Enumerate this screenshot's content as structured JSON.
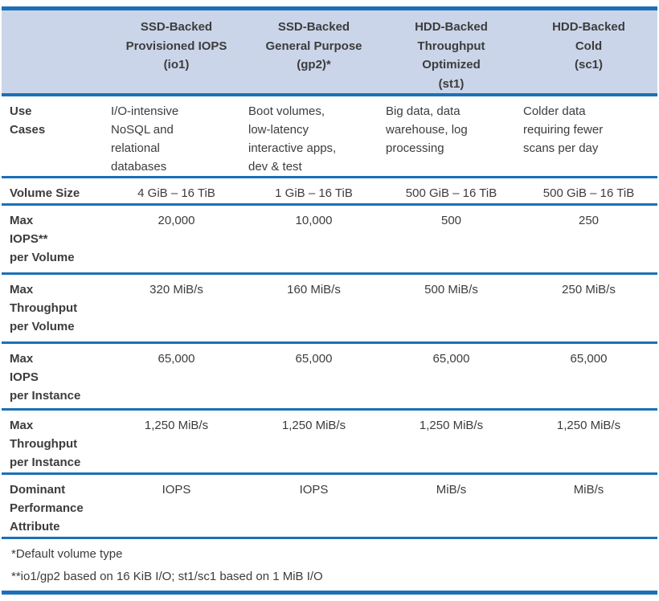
{
  "table": {
    "columns": [
      "",
      "SSD-Backed\nProvisioned IOPS\n(io1)",
      "SSD-Backed\nGeneral Purpose\n(gp2)*",
      "HDD-Backed\nThroughput\nOptimized\n(st1)",
      "HDD-Backed\nCold\n(sc1)"
    ],
    "rows": [
      {
        "header": "Use\nCases",
        "values": [
          "I/O-intensive\nNoSQL and\nrelational\ndatabases",
          "Boot volumes,\nlow-latency\ninteractive apps,\ndev & test",
          "Big data, data\nwarehouse, log\nprocessing",
          "Colder data\nrequiring fewer\nscans per day"
        ]
      },
      {
        "header": "Volume Size",
        "values": [
          "4 GiB – 16 TiB",
          "1 GiB – 16 TiB",
          "500 GiB – 16 TiB",
          "500 GiB – 16 TiB"
        ]
      },
      {
        "header": "Max\nIOPS**\nper Volume",
        "values": [
          "20,000",
          "10,000",
          "500",
          "250"
        ]
      },
      {
        "header": "Max\nThroughput\nper Volume",
        "values": [
          "320 MiB/s",
          "160 MiB/s",
          "500 MiB/s",
          "250 MiB/s"
        ]
      },
      {
        "header": "Max\nIOPS\nper Instance",
        "values": [
          "65,000",
          "65,000",
          "65,000",
          "65,000"
        ]
      },
      {
        "header": "Max\nThroughput\nper Instance",
        "values": [
          "1,250 MiB/s",
          "1,250 MiB/s",
          "1,250 MiB/s",
          "1,250 MiB/s"
        ]
      },
      {
        "header": "Dominant\nPerformance\nAttribute",
        "values": [
          "IOPS",
          "IOPS",
          "MiB/s",
          "MiB/s"
        ]
      }
    ],
    "footnotes": [
      "*Default volume type",
      "**io1/gp2 based on 16 KiB I/O; st1/sc1 based on 1 MiB I/O"
    ]
  },
  "colors": {
    "accent": "#1b70b7",
    "header_bg": "#cbd5e9",
    "text": "#3c3c3c"
  }
}
